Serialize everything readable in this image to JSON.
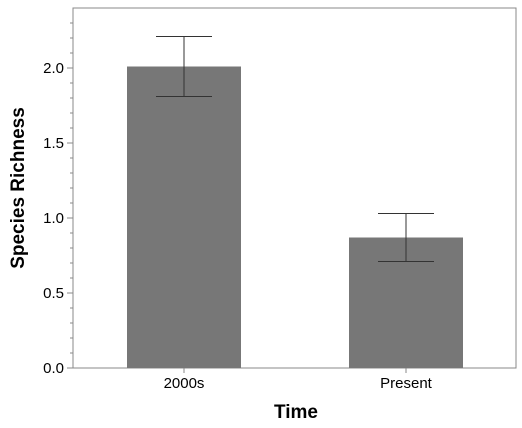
{
  "chart_data": {
    "type": "bar",
    "title": "",
    "xlabel": "Time",
    "ylabel": "Species Richness",
    "categories": [
      "2000s",
      "Present"
    ],
    "values": [
      2.01,
      0.87
    ],
    "error_upper": [
      2.21,
      1.03
    ],
    "error_lower": [
      1.81,
      0.71
    ],
    "ylim": [
      0,
      2.4
    ],
    "yticks": [
      "0.0",
      "0.5",
      "1.0",
      "1.5",
      "2.0"
    ],
    "ytick_values": [
      0,
      0.5,
      1.0,
      1.5,
      2.0
    ],
    "minor_tick_step": 0.1,
    "grid": false,
    "bar_color": "#777777",
    "axis_color": "#888888"
  }
}
